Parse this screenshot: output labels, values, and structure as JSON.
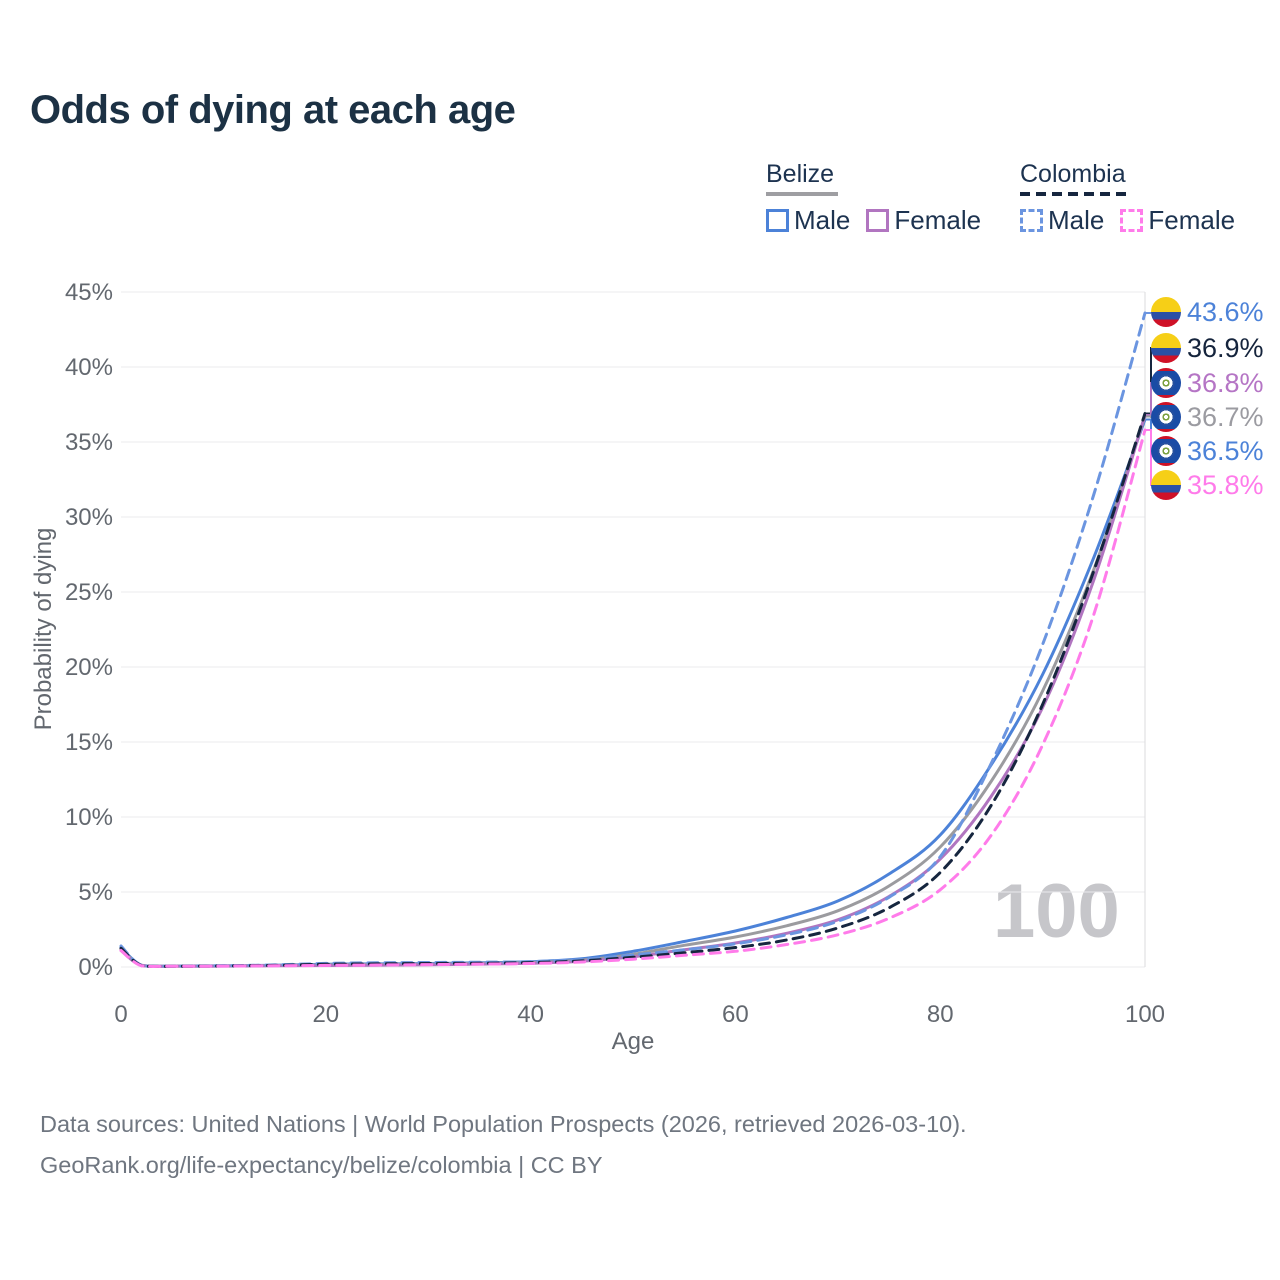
{
  "title": "Odds of dying at each age",
  "legend": {
    "groups": [
      {
        "name": "Belize",
        "line_style": "solid",
        "underline_color": "#9e9ea2",
        "items": [
          {
            "label": "Male",
            "color": "#4c82d8",
            "dashed": false
          },
          {
            "label": "Female",
            "color": "#b175c0",
            "dashed": false
          }
        ]
      },
      {
        "name": "Colombia",
        "line_style": "dashed",
        "underline_color": "#16263f",
        "items": [
          {
            "label": "Male",
            "color": "#6b95e0",
            "dashed": true
          },
          {
            "label": "Female",
            "color": "#ff7bea",
            "dashed": true
          }
        ]
      }
    ]
  },
  "chart_data": {
    "type": "line",
    "title": "Odds of dying at each age",
    "xlabel": "Age",
    "ylabel": "Probability of dying",
    "x_ticks": [
      0,
      20,
      40,
      60,
      80,
      100
    ],
    "y_ticks": [
      "0%",
      "5%",
      "10%",
      "15%",
      "20%",
      "25%",
      "30%",
      "35%",
      "40%",
      "45%"
    ],
    "x_range": [
      0,
      100
    ],
    "y_range_percent": [
      0,
      45
    ],
    "grid": true,
    "hover_age_watermark": "100",
    "hover_age": 100,
    "ages": [
      0,
      2,
      5,
      10,
      15,
      20,
      25,
      30,
      35,
      40,
      45,
      50,
      55,
      60,
      65,
      70,
      75,
      80,
      85,
      90,
      95,
      100
    ],
    "series": [
      {
        "name": "Belize Male",
        "country": "Belize",
        "sex": "Male",
        "color": "#4c82d8",
        "dash": false,
        "values": [
          1.3,
          0.12,
          0.07,
          0.08,
          0.12,
          0.18,
          0.21,
          0.23,
          0.28,
          0.35,
          0.55,
          1.05,
          1.7,
          2.4,
          3.3,
          4.4,
          6.2,
          8.8,
          13.5,
          19.5,
          27.3,
          36.5
        ]
      },
      {
        "name": "Belize",
        "country": "Belize",
        "sex": "Both",
        "color": "#9b9b9f",
        "dash": false,
        "values": [
          1.2,
          0.11,
          0.06,
          0.07,
          0.1,
          0.14,
          0.17,
          0.19,
          0.24,
          0.3,
          0.46,
          0.85,
          1.45,
          2.0,
          2.75,
          3.75,
          5.4,
          8.0,
          12.4,
          18.4,
          26.5,
          36.7
        ]
      },
      {
        "name": "Belize Female",
        "country": "Belize",
        "sex": "Female",
        "color": "#b175c0",
        "dash": false,
        "values": [
          1.1,
          0.1,
          0.05,
          0.06,
          0.08,
          0.1,
          0.12,
          0.15,
          0.19,
          0.25,
          0.38,
          0.68,
          1.15,
          1.6,
          2.25,
          3.15,
          4.7,
          7.2,
          11.4,
          17.3,
          25.8,
          36.8
        ]
      },
      {
        "name": "Colombia Male",
        "country": "Colombia",
        "sex": "Male",
        "color": "#6b95e0",
        "dash": true,
        "values": [
          1.4,
          0.1,
          0.06,
          0.08,
          0.14,
          0.24,
          0.28,
          0.3,
          0.32,
          0.36,
          0.5,
          0.8,
          1.15,
          1.55,
          2.15,
          3.05,
          4.65,
          7.35,
          13.6,
          21.5,
          31.5,
          43.6
        ]
      },
      {
        "name": "Colombia",
        "country": "Colombia",
        "sex": "Both",
        "color": "#16263f",
        "dash": true,
        "values": [
          1.25,
          0.09,
          0.05,
          0.07,
          0.11,
          0.18,
          0.21,
          0.23,
          0.25,
          0.29,
          0.41,
          0.65,
          0.95,
          1.3,
          1.8,
          2.6,
          3.95,
          6.3,
          10.8,
          17.5,
          26.4,
          36.9
        ]
      },
      {
        "name": "Colombia Female",
        "country": "Colombia",
        "sex": "Female",
        "color": "#ff7bea",
        "dash": true,
        "values": [
          1.1,
          0.08,
          0.05,
          0.06,
          0.08,
          0.11,
          0.13,
          0.16,
          0.19,
          0.23,
          0.33,
          0.52,
          0.78,
          1.05,
          1.5,
          2.15,
          3.25,
          5.15,
          8.8,
          14.8,
          23.5,
          35.8
        ]
      }
    ],
    "end_labels": [
      {
        "label": "43.6%",
        "series": "Colombia Male",
        "flag": "colombia",
        "color": "#4c82d8",
        "dashed_leader": true
      },
      {
        "label": "36.9%",
        "series": "Colombia",
        "flag": "colombia",
        "color": "#15243c",
        "dashed_leader": false
      },
      {
        "label": "36.8%",
        "series": "Belize Female",
        "flag": "belize",
        "color": "#b575c5",
        "dashed_leader": false
      },
      {
        "label": "36.7%",
        "series": "Belize",
        "flag": "belize",
        "color": "#9b9ba1",
        "dashed_leader": false
      },
      {
        "label": "36.5%",
        "series": "Belize Male",
        "flag": "belize",
        "color": "#4c82d8",
        "dashed_leader": false
      },
      {
        "label": "35.8%",
        "series": "Colombia Female",
        "flag": "colombia",
        "color": "#ff7bea",
        "dashed_leader": false
      }
    ],
    "legend_position": "top-right"
  },
  "footer": {
    "line1": "Data sources: United Nations | World Population Prospects (2026, retrieved 2026-03-10).",
    "line2": "GeoRank.org/life-expectancy/belize/colombia | CC BY"
  }
}
